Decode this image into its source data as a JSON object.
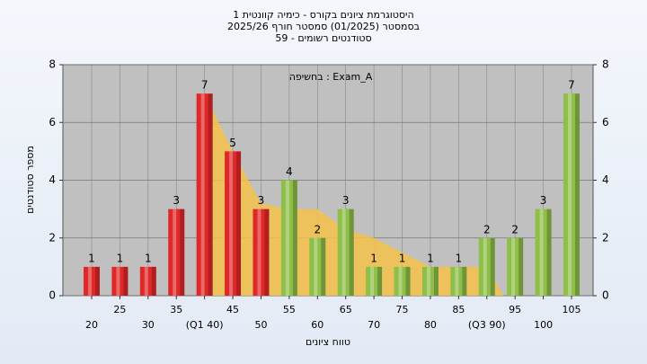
{
  "chart_data": {
    "type": "bar",
    "title_lines": [
      "היסטוגרמת ציונים בקורס - כימיה קוונטית 1",
      "בסמסטר  (01/2025)  סמסטר חורף 2025/26",
      "סטודנטים רשומים - 59"
    ],
    "annotation": "בחשיפה : Exam_A",
    "y_label": "מספר סטודנטים",
    "x_label": "טווח ציונים",
    "categories": [
      "20",
      "25",
      "30",
      "35",
      "(Q1 40)",
      "45",
      "50",
      "55",
      "60",
      "65",
      "70",
      "75",
      "80",
      "85",
      "(Q3 90)",
      "95",
      "100",
      "105"
    ],
    "values": [
      1,
      1,
      1,
      3,
      7,
      5,
      3,
      4,
      2,
      3,
      1,
      1,
      1,
      1,
      2,
      2,
      3,
      7
    ],
    "colors": [
      "#e02828",
      "#e02828",
      "#e02828",
      "#e02828",
      "#e02828",
      "#e02828",
      "#e02828",
      "#8fbf48",
      "#8fbf48",
      "#8fbf48",
      "#8fbf48",
      "#8fbf48",
      "#8fbf48",
      "#8fbf48",
      "#8fbf48",
      "#8fbf48",
      "#8fbf48",
      "#8fbf48"
    ],
    "area": {
      "color": "#f5c24a",
      "x_index": [
        4,
        5,
        6,
        7,
        8,
        9,
        10,
        11,
        12,
        13,
        14
      ],
      "values": [
        7,
        5,
        3.2,
        3,
        3,
        2.3,
        2,
        1.5,
        1,
        1,
        1
      ]
    },
    "ylim": [
      0,
      8
    ],
    "yticks": [
      0,
      2,
      4,
      6,
      8
    ],
    "y2lim": [
      0,
      8
    ],
    "y2ticks": [
      0,
      2,
      4,
      6,
      8
    ],
    "grid": true
  }
}
